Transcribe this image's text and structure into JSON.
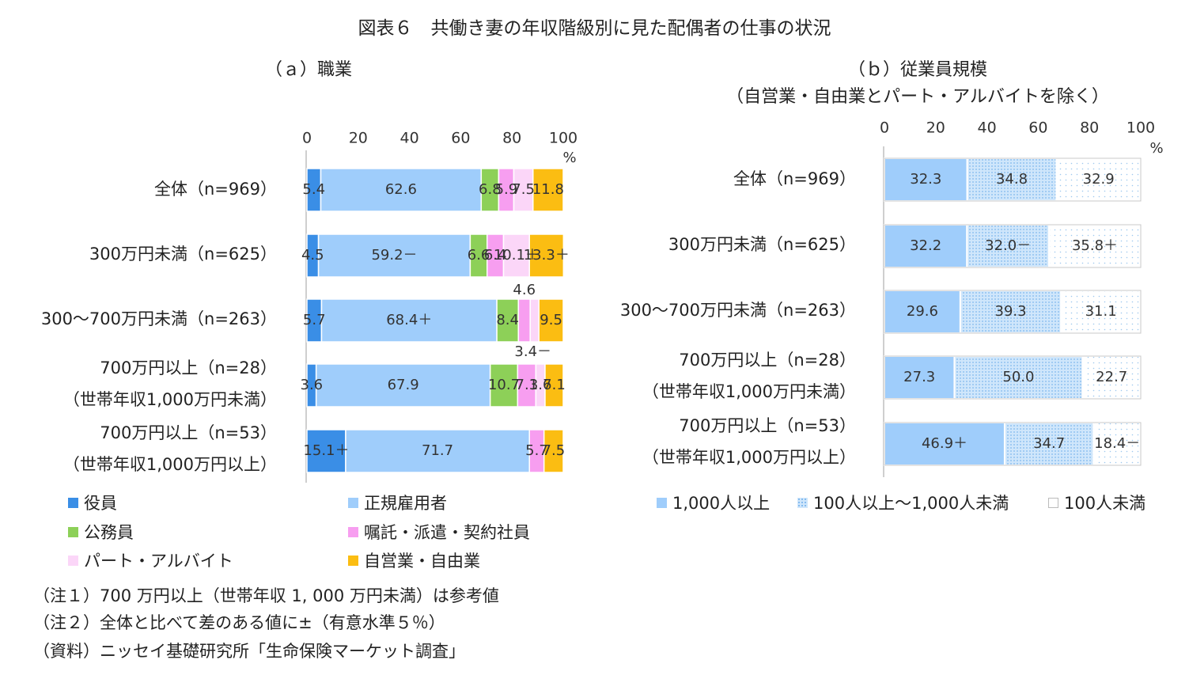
{
  "main_title": "図表６　共働き妻の年収階級別に見た配偶者の仕事の状況",
  "chart_data": [
    {
      "type": "bar",
      "stacked": true,
      "orientation": "horizontal",
      "title": "（ａ）職業",
      "xlim": [
        0,
        100
      ],
      "ticks": [
        0,
        20,
        40,
        60,
        80,
        100
      ],
      "unit": "%",
      "categories": [
        [
          "全体（n=969）"
        ],
        [
          "300万円未満（n=625）"
        ],
        [
          "300～700万円未満（n=263）"
        ],
        [
          "700万円以上（n=28）",
          "（世帯年収1,000万円未満）"
        ],
        [
          "700万円以上（n=53）",
          "（世帯年収1,000万円以上）"
        ]
      ],
      "series": [
        {
          "name": "役員",
          "color": "#3a8ee6",
          "values": [
            5.4,
            4.5,
            5.7,
            3.6,
            15.1
          ],
          "labels": [
            "5.4",
            "4.5",
            "5.7",
            "3.6",
            "15.1＋"
          ]
        },
        {
          "name": "正規雇用者",
          "color": "#9fcdfb",
          "values": [
            62.6,
            59.2,
            68.4,
            67.9,
            71.7
          ],
          "labels": [
            "62.6",
            "59.2－",
            "68.4＋",
            "67.9",
            "71.7"
          ]
        },
        {
          "name": "公務員",
          "color": "#8dd058",
          "values": [
            6.8,
            6.6,
            8.4,
            10.7,
            0
          ],
          "labels": [
            "6.8",
            "6.6",
            "8.4",
            "10.7",
            ""
          ]
        },
        {
          "name": "嘱託・派遣・契約社員",
          "color": "#f79ef0",
          "values": [
            5.9,
            6.4,
            4.6,
            7.1,
            5.7
          ],
          "labels": [
            "5.9",
            "6.4",
            "4.6",
            "7.1",
            "5.7"
          ]
        },
        {
          "name": "パート・アルバイト",
          "color": "#fbd6f8",
          "values": [
            7.5,
            10.1,
            3.4,
            3.6,
            0
          ],
          "labels": [
            "7.5",
            "10.1＋",
            "3.4－",
            "3.6",
            ""
          ]
        },
        {
          "name": "自営業・自由業",
          "color": "#fbbd12",
          "values": [
            11.8,
            13.3,
            9.5,
            7.1,
            7.5
          ],
          "labels": [
            "11.8",
            "13.3＋",
            "9.5",
            "7.1",
            "7.5"
          ]
        }
      ]
    },
    {
      "type": "bar",
      "stacked": true,
      "orientation": "horizontal",
      "title": [
        "（ｂ）従業員規模",
        "（自営業・自由業とパート・アルバイトを除く）"
      ],
      "xlim": [
        0,
        100
      ],
      "ticks": [
        0,
        20,
        40,
        60,
        80,
        100
      ],
      "unit": "%",
      "categories": [
        [
          "全体（n=969）"
        ],
        [
          "300万円未満（n=625）"
        ],
        [
          "300～700万円未満（n=263）"
        ],
        [
          "700万円以上（n=28）",
          "（世帯年収1,000万円未満）"
        ],
        [
          "700万円以上（n=53）",
          "（世帯年収1,000万円以上）"
        ]
      ],
      "series": [
        {
          "name": "1,000人以上",
          "color": "#9fcdfb",
          "pattern": "solid",
          "values": [
            32.3,
            32.2,
            29.6,
            27.3,
            46.9
          ],
          "labels": [
            "32.3",
            "32.2",
            "29.6",
            "27.3",
            "46.9＋"
          ]
        },
        {
          "name": "100人以上～1,000人未満",
          "color": "#cfe6fb",
          "pattern": "dots-dense",
          "values": [
            34.8,
            32.0,
            39.3,
            50.0,
            34.7
          ],
          "labels": [
            "34.8",
            "32.0－",
            "39.3",
            "50.0",
            "34.7"
          ]
        },
        {
          "name": "100人未満",
          "color": "#ffffff",
          "pattern": "dots-sparse",
          "values": [
            32.9,
            35.8,
            31.1,
            22.7,
            18.4
          ],
          "labels": [
            "32.9",
            "35.8＋",
            "31.1",
            "22.7",
            "18.4－"
          ]
        }
      ]
    }
  ],
  "notes": [
    "（注１）700 万円以上（世帯年収 1, 000 万円未満）は参考値",
    "（注２）全体と比べて差のある値に±（有意水準５％）",
    "（資料）ニッセイ基礎研究所「生命保険マーケット調査」"
  ]
}
